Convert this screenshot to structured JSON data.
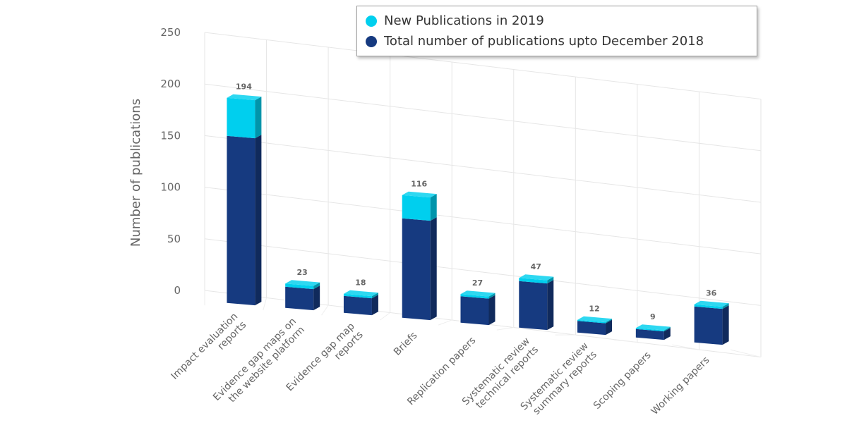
{
  "chart_data": {
    "type": "bar",
    "stacked": true,
    "three_d": true,
    "title": "",
    "xlabel": "",
    "ylabel": "Number of publications",
    "ylim": [
      0,
      250
    ],
    "yticks": [
      0,
      50,
      100,
      150,
      200,
      250
    ],
    "grid": true,
    "legend_position": "top-right",
    "categories": [
      [
        "Impact evaluation",
        "reports"
      ],
      [
        "Evidence gap maps on",
        "the website platform"
      ],
      [
        "Evidence gap map",
        "reports"
      ],
      [
        "Briefs"
      ],
      [
        "Replication papers"
      ],
      [
        "Systematic review",
        "technical reports"
      ],
      [
        "Systematic review",
        "summary reports"
      ],
      [
        "Scoping papers"
      ],
      [
        "Working papers"
      ]
    ],
    "series": [
      {
        "name": "Total number of publications upto December 2018",
        "color": "#163a80",
        "values": [
          158,
          20,
          16,
          94,
          25,
          44,
          11,
          8,
          34
        ]
      },
      {
        "name": "New Publications in 2019",
        "color": "#00cfee",
        "values": [
          36,
          3,
          2,
          22,
          2,
          3,
          1,
          1,
          2
        ]
      }
    ],
    "totals": [
      194,
      23,
      18,
      116,
      27,
      47,
      12,
      9,
      36
    ]
  }
}
